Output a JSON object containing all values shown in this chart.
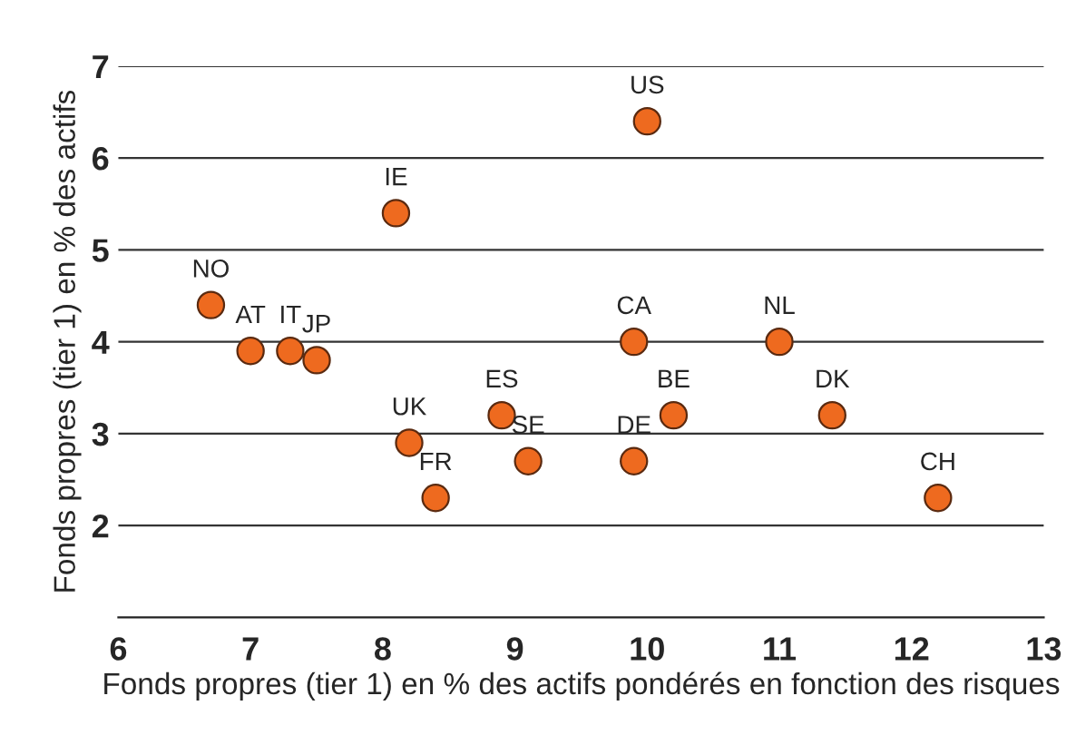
{
  "chart_data": {
    "type": "scatter",
    "xlabel": "Fonds propres (tier 1) en % des actifs pondérés en fonction des risques",
    "ylabel": "Fonds propres (tier 1) en % des actifs",
    "x": [
      6.7,
      7.0,
      7.3,
      7.5,
      8.1,
      8.2,
      8.4,
      8.9,
      9.1,
      10.0,
      9.9,
      9.9,
      10.2,
      11.0,
      11.4,
      12.2
    ],
    "values": [
      4.4,
      3.9,
      3.9,
      3.8,
      5.4,
      2.9,
      2.3,
      3.2,
      2.7,
      6.4,
      4.0,
      2.7,
      3.2,
      4.0,
      3.2,
      2.3
    ],
    "color": "#ee6a1f",
    "marker": "circle",
    "xlim": [
      6,
      13
    ],
    "xticks": [
      6,
      7,
      8,
      9,
      10,
      11,
      12,
      13
    ],
    "ylim": [
      1,
      7
    ],
    "yticks": [
      2,
      3,
      4,
      5,
      6,
      7
    ],
    "grid": "y",
    "annotations": [
      {
        "text": "NO",
        "x": 6.7,
        "y": 4.4
      },
      {
        "text": "AT",
        "x": 7.0,
        "y": 3.9
      },
      {
        "text": "IT",
        "x": 7.3,
        "y": 3.9
      },
      {
        "text": "JP",
        "x": 7.5,
        "y": 3.8
      },
      {
        "text": "IE",
        "x": 8.1,
        "y": 5.4
      },
      {
        "text": "UK",
        "x": 8.2,
        "y": 2.9
      },
      {
        "text": "FR",
        "x": 8.4,
        "y": 2.3
      },
      {
        "text": "ES",
        "x": 8.9,
        "y": 3.2
      },
      {
        "text": "SE",
        "x": 9.1,
        "y": 2.7
      },
      {
        "text": "US",
        "x": 10.0,
        "y": 6.4
      },
      {
        "text": "CA",
        "x": 9.9,
        "y": 4.0
      },
      {
        "text": "DE",
        "x": 9.9,
        "y": 2.7
      },
      {
        "text": "BE",
        "x": 10.2,
        "y": 3.2
      },
      {
        "text": "NL",
        "x": 11.0,
        "y": 4.0
      },
      {
        "text": "DK",
        "x": 11.4,
        "y": 3.2
      },
      {
        "text": "CH",
        "x": 12.2,
        "y": 2.3
      }
    ]
  }
}
